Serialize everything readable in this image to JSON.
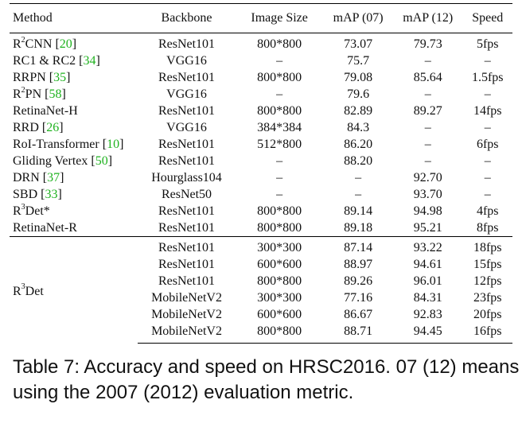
{
  "headers": {
    "method": "Method",
    "backbone": "Backbone",
    "image_size": "Image Size",
    "map07": "mAP (07)",
    "map12": "mAP (12)",
    "speed": "Speed"
  },
  "rows": [
    {
      "method_pre": "R",
      "method_sup": "2",
      "method_post": "CNN [",
      "cite": "20",
      "cite_close": "]",
      "backbone": "ResNet101",
      "size": "800*800",
      "map07": "73.07",
      "map12": "79.73",
      "speed": "5fps"
    },
    {
      "method_pre": "RC1 & RC2 [",
      "method_sup": "",
      "method_post": "",
      "cite": "34",
      "cite_close": "]",
      "backbone": "VGG16",
      "size": "–",
      "map07": "75.7",
      "map12": "–",
      "speed": "–"
    },
    {
      "method_pre": "RRPN [",
      "method_sup": "",
      "method_post": "",
      "cite": "35",
      "cite_close": "]",
      "backbone": "ResNet101",
      "size": "800*800",
      "map07": "79.08",
      "map12": "85.64",
      "speed": "1.5fps"
    },
    {
      "method_pre": "R",
      "method_sup": "2",
      "method_post": "PN [",
      "cite": "58",
      "cite_close": "]",
      "backbone": "VGG16",
      "size": "–",
      "map07": "79.6",
      "map12": "–",
      "speed": "–"
    },
    {
      "method_pre": "RetinaNet-H",
      "method_sup": "",
      "method_post": "",
      "cite": "",
      "cite_close": "",
      "backbone": "ResNet101",
      "size": "800*800",
      "map07": "82.89",
      "map12": "89.27",
      "speed": "14fps"
    },
    {
      "method_pre": "RRD [",
      "method_sup": "",
      "method_post": "",
      "cite": "26",
      "cite_close": "]",
      "backbone": "VGG16",
      "size": "384*384",
      "map07": "84.3",
      "map12": "–",
      "speed": "–"
    },
    {
      "method_pre": "RoI-Transformer [",
      "method_sup": "",
      "method_post": "",
      "cite": "10",
      "cite_close": "]",
      "backbone": "ResNet101",
      "size": "512*800",
      "map07": "86.20",
      "map12": "–",
      "speed": "6fps"
    },
    {
      "method_pre": "Gliding Vertex [",
      "method_sup": "",
      "method_post": "",
      "cite": "50",
      "cite_close": "]",
      "backbone": "ResNet101",
      "size": "–",
      "map07": "88.20",
      "map12": "–",
      "speed": "–"
    },
    {
      "method_pre": "DRN [",
      "method_sup": "",
      "method_post": "",
      "cite": "37",
      "cite_close": "]",
      "backbone": "Hourglass104",
      "size": "–",
      "map07": "–",
      "map12": "92.70",
      "speed": "–"
    },
    {
      "method_pre": "SBD [",
      "method_sup": "",
      "method_post": "",
      "cite": "33",
      "cite_close": "]",
      "backbone": "ResNet50",
      "size": "–",
      "map07": "–",
      "map12": "93.70",
      "speed": "–"
    },
    {
      "method_pre": "R",
      "method_sup": "3",
      "method_post": "Det*",
      "cite": "",
      "cite_close": "",
      "backbone": "ResNet101",
      "size": "800*800",
      "map07": "89.14",
      "map12": "94.98",
      "speed": "4fps"
    },
    {
      "method_pre": "RetinaNet-R",
      "method_sup": "",
      "method_post": "",
      "cite": "",
      "cite_close": "",
      "backbone": "ResNet101",
      "size": "800*800",
      "map07": "89.18",
      "map12": "95.21",
      "speed": "8fps"
    }
  ],
  "ours": {
    "method_pre": "R",
    "method_sup": "3",
    "method_post": "Det",
    "rows": [
      {
        "backbone": "ResNet101",
        "size": "300*300",
        "map07": "87.14",
        "map12": "93.22",
        "speed": "18fps"
      },
      {
        "backbone": "ResNet101",
        "size": "600*600",
        "map07": "88.97",
        "map12": "94.61",
        "speed": "15fps"
      },
      {
        "backbone": "ResNet101",
        "size": "800*800",
        "map07": "89.26",
        "map12": "96.01",
        "speed": "12fps"
      },
      {
        "backbone": "MobileNetV2",
        "size": "300*300",
        "map07": "77.16",
        "map12": "84.31",
        "speed": "23fps"
      },
      {
        "backbone": "MobileNetV2",
        "size": "600*600",
        "map07": "86.67",
        "map12": "92.83",
        "speed": "20fps"
      },
      {
        "backbone": "MobileNetV2",
        "size": "800*800",
        "map07": "88.71",
        "map12": "94.45",
        "speed": "16fps"
      }
    ]
  },
  "caption": "Table 7: Accuracy and speed on HRSC2016. 07 (12) means using the 2007 (2012) evaluation metric."
}
